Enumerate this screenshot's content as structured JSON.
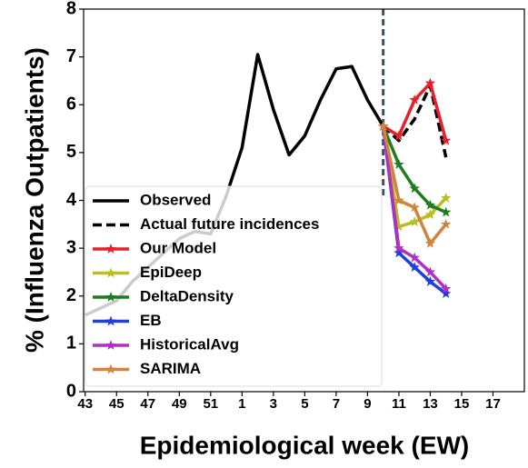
{
  "chart_data": {
    "type": "line",
    "x_label": "Epidemiological week (EW)",
    "y_label": "% (Influenza Outpatients)",
    "x": [
      0,
      1,
      2,
      3,
      4,
      5,
      6,
      7,
      8,
      9,
      10,
      11,
      12,
      13,
      14,
      15,
      16,
      17,
      18,
      19,
      20,
      21,
      22,
      23
    ],
    "xlim": [
      -0.1,
      28
    ],
    "xticks": [
      {
        "value": 0,
        "label": "43"
      },
      {
        "value": 2,
        "label": "45"
      },
      {
        "value": 4,
        "label": "47"
      },
      {
        "value": 6,
        "label": "49"
      },
      {
        "value": 8,
        "label": "51"
      },
      {
        "value": 10,
        "label": "1"
      },
      {
        "value": 12,
        "label": "3"
      },
      {
        "value": 14,
        "label": "5"
      },
      {
        "value": 16,
        "label": "7"
      },
      {
        "value": 18,
        "label": "9"
      },
      {
        "value": 20,
        "label": "11"
      },
      {
        "value": 22,
        "label": "13"
      },
      {
        "value": 24,
        "label": "15"
      },
      {
        "value": 26,
        "label": "17"
      }
    ],
    "ylim": [
      0,
      8
    ],
    "yticks": [
      0,
      1,
      2,
      3,
      4,
      5,
      6,
      7,
      8
    ],
    "vline_x": 19,
    "legend": "lower left",
    "series": [
      {
        "name": "Observed",
        "color": "#000000",
        "dash": false,
        "marker": "none",
        "values": [
          1.6,
          1.75,
          1.9,
          2.3,
          2.6,
          2.9,
          3.2,
          3.35,
          3.3,
          4.1,
          5.1,
          7.05,
          5.9,
          4.95,
          5.35,
          6.1,
          6.75,
          6.8,
          6.1,
          5.55,
          null,
          null,
          null,
          null
        ]
      },
      {
        "name": "Actual future incidences",
        "color": "#000000",
        "dash": true,
        "marker": "none",
        "values": [
          null,
          null,
          null,
          null,
          null,
          null,
          null,
          null,
          null,
          null,
          null,
          null,
          null,
          null,
          null,
          null,
          null,
          null,
          null,
          5.55,
          5.25,
          5.7,
          6.4,
          4.9
        ]
      },
      {
        "name": "Our Model",
        "color": "#e8202a",
        "dash": false,
        "marker": "star",
        "values": [
          null,
          null,
          null,
          null,
          null,
          null,
          null,
          null,
          null,
          null,
          null,
          null,
          null,
          null,
          null,
          null,
          null,
          null,
          null,
          5.55,
          5.35,
          6.1,
          6.45,
          5.25
        ]
      },
      {
        "name": "EpiDeep",
        "color": "#bcbd22",
        "dash": false,
        "marker": "star",
        "values": [
          null,
          null,
          null,
          null,
          null,
          null,
          null,
          null,
          null,
          null,
          null,
          null,
          null,
          null,
          null,
          null,
          null,
          null,
          null,
          5.55,
          3.45,
          3.55,
          3.7,
          4.05
        ]
      },
      {
        "name": "DeltaDensity",
        "color": "#1e7d1e",
        "dash": false,
        "marker": "star",
        "values": [
          null,
          null,
          null,
          null,
          null,
          null,
          null,
          null,
          null,
          null,
          null,
          null,
          null,
          null,
          null,
          null,
          null,
          null,
          null,
          5.55,
          4.75,
          4.25,
          3.9,
          3.75
        ]
      },
      {
        "name": "EB",
        "color": "#1f3fe0",
        "dash": false,
        "marker": "star",
        "values": [
          null,
          null,
          null,
          null,
          null,
          null,
          null,
          null,
          null,
          null,
          null,
          null,
          null,
          null,
          null,
          null,
          null,
          null,
          null,
          5.55,
          2.9,
          2.6,
          2.3,
          2.05
        ]
      },
      {
        "name": "HistoricalAvg",
        "color": "#b030c0",
        "dash": false,
        "marker": "star",
        "values": [
          null,
          null,
          null,
          null,
          null,
          null,
          null,
          null,
          null,
          null,
          null,
          null,
          null,
          null,
          null,
          null,
          null,
          null,
          null,
          5.55,
          3.0,
          2.8,
          2.5,
          2.15
        ]
      },
      {
        "name": "SARIMA",
        "color": "#cd853f",
        "dash": false,
        "marker": "star",
        "values": [
          null,
          null,
          null,
          null,
          null,
          null,
          null,
          null,
          null,
          null,
          null,
          null,
          null,
          null,
          null,
          null,
          null,
          null,
          null,
          5.55,
          4.0,
          3.85,
          3.1,
          3.5
        ]
      }
    ]
  }
}
